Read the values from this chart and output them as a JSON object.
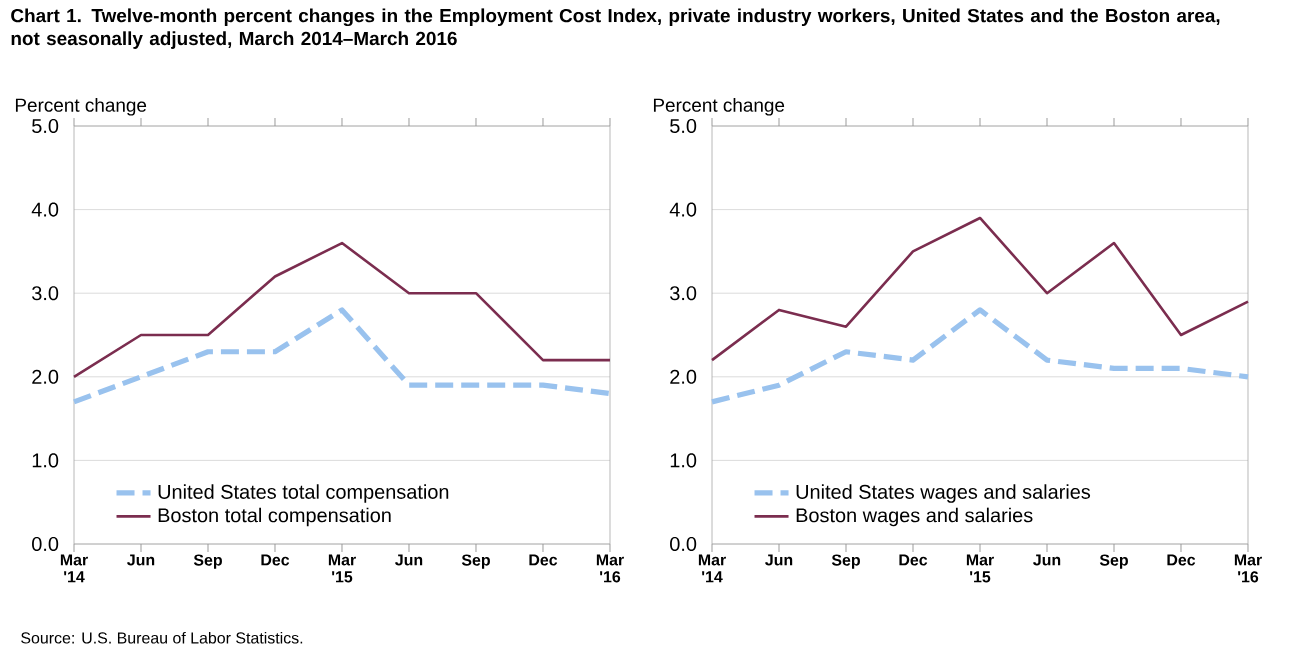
{
  "chart_data": [
    {
      "type": "line",
      "title": "Chart 1. Twelve-month percent changes in the Employment Cost Index, private industry workers, United States and the Boston area, not seasonally adjusted, March 2014–March 2016",
      "ylabel": "Percent change",
      "categories": [
        "Mar '14",
        "Jun",
        "Sep",
        "Dec",
        "Mar '15",
        "Jun",
        "Sep",
        "Dec",
        "Mar '16"
      ],
      "series": [
        {
          "name": "United States total compensation",
          "color": "#99c2ee",
          "line_style": "dashed",
          "values": [
            1.7,
            2.0,
            2.3,
            2.3,
            2.8,
            1.9,
            1.9,
            1.9,
            1.8
          ]
        },
        {
          "name": "Boston total compensation",
          "color": "#7b2d4f",
          "line_style": "solid",
          "values": [
            2.0,
            2.5,
            2.5,
            3.2,
            3.6,
            3.0,
            3.0,
            2.2,
            2.2
          ]
        }
      ],
      "ylim": [
        0,
        5
      ],
      "yticks": [
        {
          "value": 0,
          "label": "0.0"
        },
        {
          "value": 1,
          "label": "1.0"
        },
        {
          "value": 2,
          "label": "2.0"
        },
        {
          "value": 3,
          "label": "3.0"
        },
        {
          "value": 4,
          "label": "4.0"
        },
        {
          "value": 5,
          "label": "5.0"
        }
      ],
      "grid": "y",
      "legend": "bottom",
      "marker": "none",
      "annotations": [
        "Source: U.S. Bureau of Labor Statistics."
      ]
    },
    {
      "type": "line",
      "ylabel": "Percent change",
      "categories": [
        "Mar '14",
        "Jun",
        "Sep",
        "Dec",
        "Mar '15",
        "Jun",
        "Sep",
        "Dec",
        "Mar '16"
      ],
      "series": [
        {
          "name": "United States wages and salaries",
          "color": "#99c2ee",
          "line_style": "dashed",
          "values": [
            1.7,
            1.9,
            2.3,
            2.2,
            2.8,
            2.2,
            2.1,
            2.1,
            2.0
          ]
        },
        {
          "name": "Boston wages and salaries",
          "color": "#7b2d4f",
          "line_style": "solid",
          "values": [
            2.2,
            2.8,
            2.6,
            3.5,
            3.9,
            3.0,
            3.6,
            2.5,
            2.9
          ]
        }
      ],
      "ylim": [
        0,
        5
      ],
      "yticks": [
        {
          "value": 0,
          "label": "0.0"
        },
        {
          "value": 1,
          "label": "1.0"
        },
        {
          "value": 2,
          "label": "2.0"
        },
        {
          "value": 3,
          "label": "3.0"
        },
        {
          "value": 4,
          "label": "4.0"
        },
        {
          "value": 5,
          "label": "5.0"
        }
      ],
      "grid": "y",
      "legend": "bottom",
      "marker": "none"
    }
  ]
}
